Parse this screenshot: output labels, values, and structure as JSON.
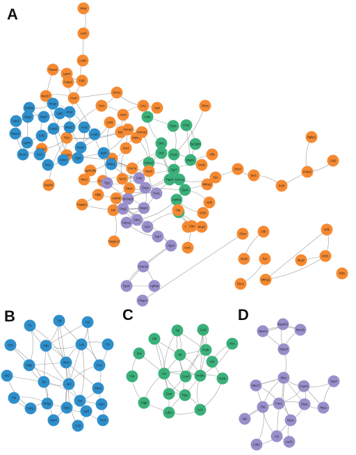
{
  "panels": [
    "A",
    "B",
    "C",
    "D"
  ],
  "colors": {
    "orange": "#f58a32",
    "blue": "#2f8fcb",
    "green": "#3bb07a",
    "purple": "#9a8fcb",
    "edge": "#7a7a7a"
  },
  "panel_A": {
    "node_labels": [
      "Mcat",
      "Acs5",
      "Lcsd1",
      "Rasa4",
      "Lgmn",
      "Fdf1",
      "Fads2",
      "Mod17",
      "Pos4",
      "Emn1",
      "Cm1",
      "Oxr1",
      "Ahnrt",
      "Agrs",
      "Myl4",
      "Mrkn1",
      "Tfp2",
      "Cxfp",
      "Enps",
      "Pcd1",
      "Tachdp5",
      "Mapt1",
      "Dog2",
      "Obr1",
      "Gtt2",
      "Kpna2",
      "Ogr7",
      "Ppp4",
      "Crac1a",
      "Eps4",
      "Aph6a",
      "Fhop4",
      "Obsn",
      "Cflb",
      "Oraf1",
      "Ppr",
      "Ebcd",
      "Mkhg1",
      "Nrf5",
      "Dctl1",
      "Mup2",
      "Rbf2",
      "Ipo1",
      "Dcl3",
      "Pcdo2",
      "Ctd2",
      "Ngkp1",
      "Grmp2",
      "Crkl2",
      "Gmmn2",
      "Gm1",
      "Pcp4",
      "Cox7a",
      "Naa3",
      "Gpc3",
      "Ebv4",
      "Adrth8",
      "Dnl",
      "Lgals3bp",
      "Mrc2",
      "Golgb1",
      "Nfkb",
      "Trappc1",
      "Trappc13",
      "Otp",
      "Clpx",
      "Cwr1",
      "Stuka1",
      "Nedd4",
      "Ndufs2",
      "Srd5a1",
      "Mug2",
      "Sdc2",
      "Nog2",
      "Rad7",
      "Gpt2"
    ]
  },
  "panel_B": {
    "node_labels": [
      "Tgf",
      "Fgr",
      "Tic",
      "Cd4",
      "Pdh",
      "Lcq",
      "Fic",
      "Ptgs",
      "Ihh4",
      "Cxcr",
      "Sfr2",
      "Tpr",
      "Apc",
      "Pde2",
      "Trk",
      "Cdh2",
      "Syt",
      "Hpr1",
      "Mrc4",
      "Ccl3",
      "Pcr4",
      "Ncfg2",
      "Syp1",
      "Lgr5"
    ]
  },
  "panel_C": {
    "node_labels": [
      "Tgf",
      "Ccd1",
      "Plb",
      "Vim1",
      "Nfi",
      "Pcdh",
      "Bnt",
      "Acs",
      "Ccm3",
      "Hnf3b",
      "Kcnb",
      "Tnfr",
      "Gnst",
      "Tkp1",
      "Pdgf",
      "Ldh1",
      "Ier3",
      "Irf4"
    ]
  },
  "panel_D": {
    "node_labels": [
      "Mapk10",
      "Mpsn2",
      "Myo1b",
      "Rab10",
      "Sfsr1",
      "Mpr12",
      "Ccpm1",
      "Spy4",
      "Fmr1",
      "Ebp2",
      "Tfr8",
      "Rbp2",
      "Isl2",
      "Ncp1",
      "Lrp",
      "Cdk2",
      "Ascl1"
    ]
  }
}
